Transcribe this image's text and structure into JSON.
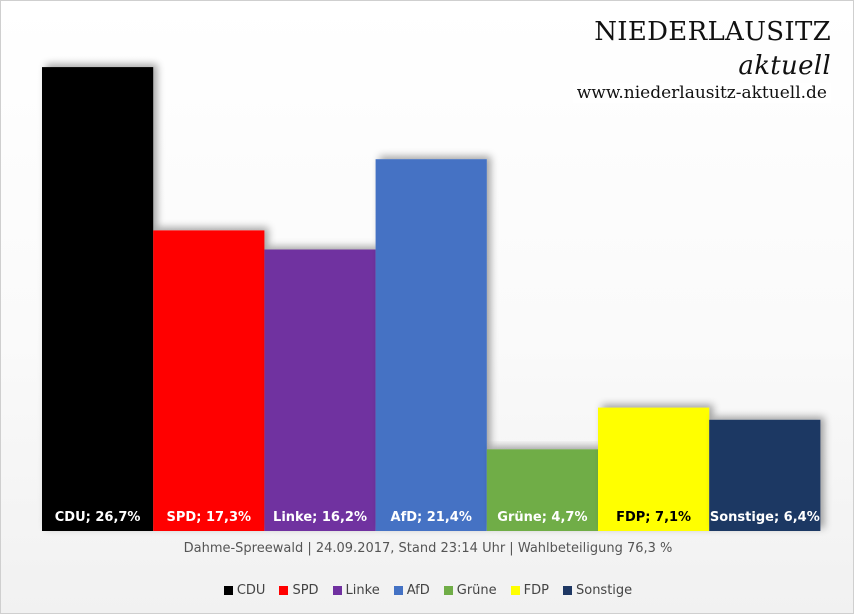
{
  "logo": {
    "title_main": "NIEDERLAUSITZ",
    "title_accent": "aktuell",
    "url": "www.niederlausitz-aktuell.de"
  },
  "subtitle": "Dahme-Spreewald | 24.09.2017, Stand 23:14 Uhr | Wahlbeteiligung 76,3 %",
  "chart_data": {
    "type": "bar",
    "title": "",
    "xlabel": "",
    "ylabel": "",
    "ylim": [
      0,
      28.2
    ],
    "grid": false,
    "legend_position": "bottom",
    "categories": [
      "CDU",
      "SPD",
      "Linke",
      "AfD",
      "Grüne",
      "FDP",
      "Sonstige"
    ],
    "values": [
      26.7,
      17.3,
      16.2,
      21.4,
      4.7,
      7.1,
      6.4
    ],
    "data_labels": [
      "CDU; 26,7%",
      "SPD; 17,3%",
      "Linke; 16,2%",
      "AfD; 21,4%",
      "Grüne; 4,7%",
      "FDP; 7,1%",
      "Sonstige; 6,4%"
    ],
    "colors": [
      "#000000",
      "#ff0000",
      "#7030a0",
      "#4472c4",
      "#70ad47",
      "#ffff00",
      "#1f3864"
    ],
    "label_colors": [
      "#ffffff",
      "#ffffff",
      "#ffffff",
      "#ffffff",
      "#ffffff",
      "#000000",
      "#ffffff"
    ]
  }
}
